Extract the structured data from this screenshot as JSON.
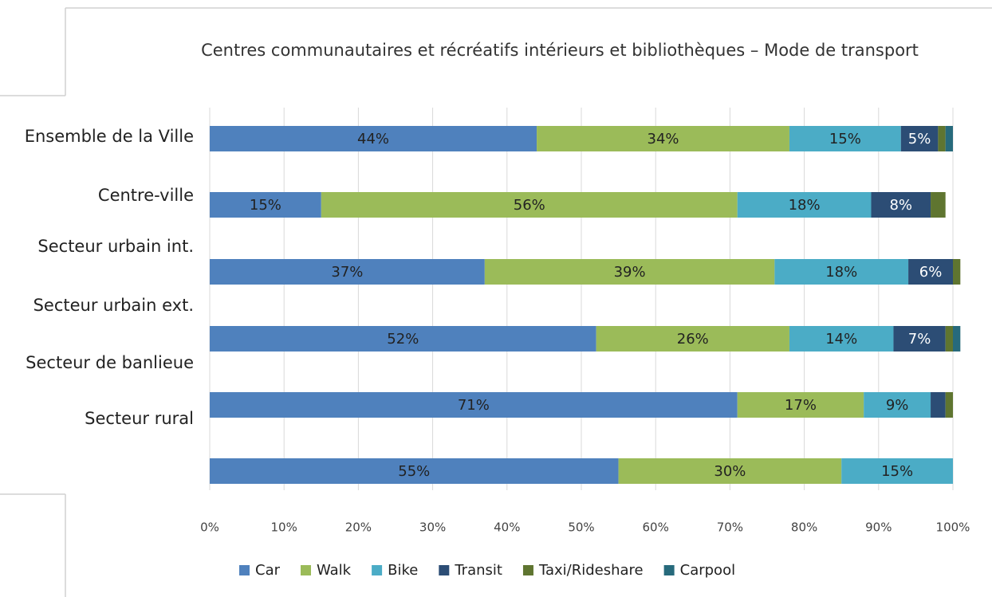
{
  "chart_data": {
    "type": "stacked-bar-horizontal",
    "title": "Centres communautaires et récréatifs intérieurs et bibliothèques – Mode de transport",
    "categories": [
      "Ensemble de la Ville",
      "Centre-ville",
      "Secteur urbain int.",
      "Secteur urbain ext.",
      "Secteur de banlieue",
      "Secteur rural",
      null
    ],
    "series": [
      {
        "name": "Car",
        "color": "#4f81bd",
        "values": [
          44,
          15,
          37,
          52,
          71,
          55,
          null
        ],
        "value_labels": [
          "44%",
          "15%",
          "37%",
          "52%",
          "71%",
          "55%",
          null
        ]
      },
      {
        "name": "Walk",
        "color": "#9bbb59",
        "values": [
          34,
          56,
          39,
          26,
          17,
          30,
          null
        ],
        "value_labels": [
          "34%",
          "56%",
          "39%",
          "26%",
          "17%",
          "30%",
          null
        ]
      },
      {
        "name": "Bike",
        "color": "#4bacc6",
        "values": [
          15,
          18,
          18,
          14,
          9,
          15,
          null
        ],
        "value_labels": [
          "15%",
          "18%",
          "18%",
          "14%",
          "9%",
          "15%",
          null
        ]
      },
      {
        "name": "Transit",
        "color": "#2c4d75",
        "values": [
          5,
          8,
          6,
          7,
          2,
          0,
          null
        ],
        "value_labels": [
          "5%",
          "8%",
          "6%",
          "7%",
          null,
          null,
          null
        ]
      },
      {
        "name": "Taxi/Rideshare",
        "color": "#5f7530",
        "values": [
          1,
          2,
          1,
          1,
          1,
          0,
          null
        ]
      },
      {
        "name": "Carpool",
        "color": "#276a7c",
        "values": [
          1,
          0,
          0,
          1,
          0,
          0,
          null
        ]
      }
    ],
    "xlim": [
      0,
      100
    ],
    "xticks": [
      {
        "value": 0,
        "label": "0%"
      },
      {
        "value": 10,
        "label": "10%"
      },
      {
        "value": 20,
        "label": "20%"
      },
      {
        "value": 30,
        "label": "30%"
      },
      {
        "value": 40,
        "label": "40%"
      },
      {
        "value": 50,
        "label": "50%"
      },
      {
        "value": 60,
        "label": "60%"
      },
      {
        "value": 70,
        "label": "70%"
      },
      {
        "value": 80,
        "label": "80%"
      },
      {
        "value": 90,
        "label": "90%"
      },
      {
        "value": 100,
        "label": "100%"
      }
    ],
    "grid": true,
    "legend": "bottom"
  }
}
